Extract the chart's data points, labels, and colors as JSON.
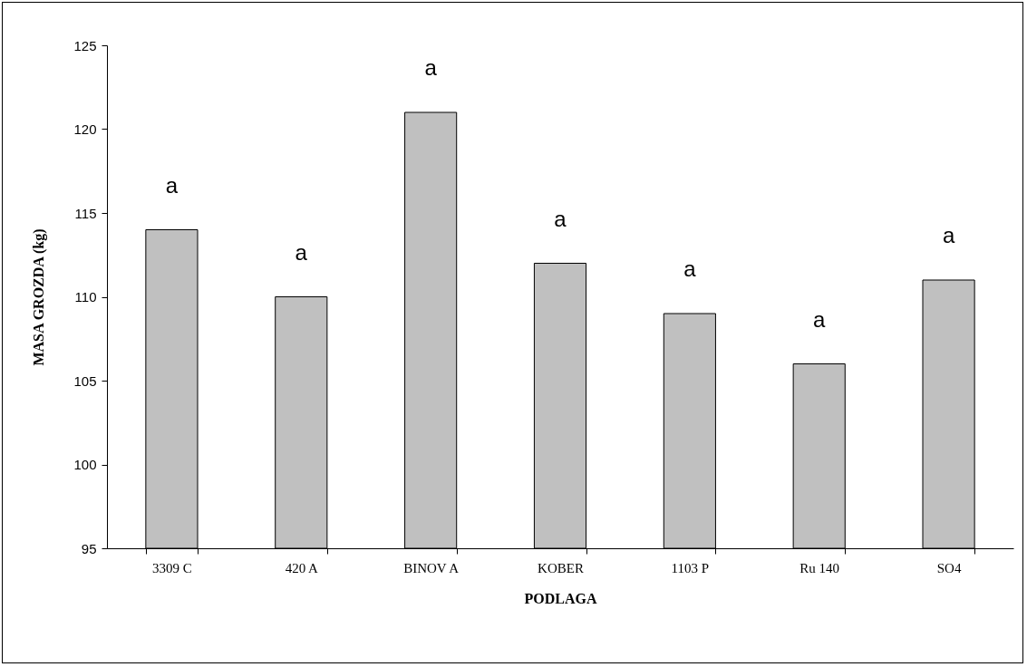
{
  "chart_data": {
    "type": "bar",
    "xlabel": "PODLAGA",
    "ylabel": "MASA GROZDA (kg)",
    "categories": [
      "3309 C",
      "420 A",
      "BINOV A",
      "KOBER",
      "1103 P",
      "Ru 140",
      "SO4"
    ],
    "values": [
      114,
      110,
      121,
      112,
      109,
      106,
      111
    ],
    "color": "#c0c0c0",
    "ylim": [
      95,
      125
    ],
    "yticks": [
      95,
      100,
      105,
      110,
      115,
      120,
      125
    ],
    "grid": false,
    "annotations": [
      "a",
      "a",
      "a",
      "a",
      "a",
      "a",
      "a"
    ]
  }
}
